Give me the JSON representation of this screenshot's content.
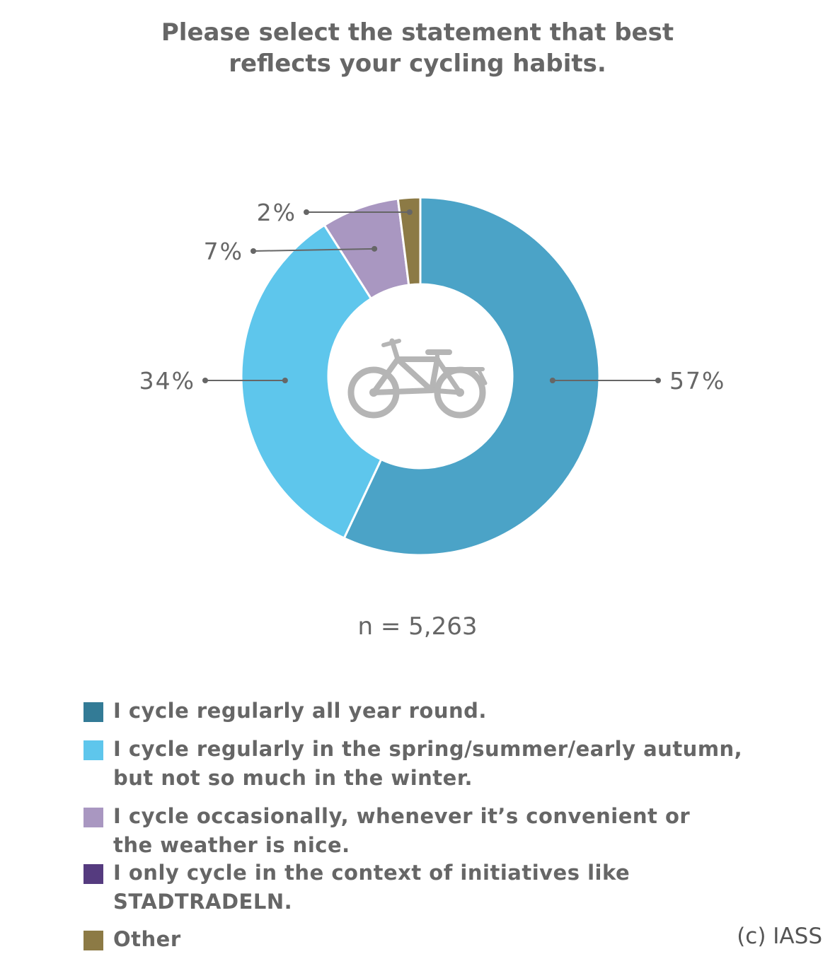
{
  "title_lines": [
    "Please select the statement that best",
    "reflects your cycling habits."
  ],
  "sample_size": "n = 5,263",
  "credit": "(c) IASS",
  "chart_data": {
    "type": "pie",
    "variant": "donut",
    "center_icon": "bicycle-icon",
    "slices": [
      {
        "label": "I cycle regularly all year round.",
        "value": 57,
        "display": "57%",
        "color": "#4ba3c7"
      },
      {
        "label": "I cycle regularly in the spring/summer/early autumn, but not so much in the winter.",
        "value": 34,
        "display": "34%",
        "color": "#5ec6ec"
      },
      {
        "label": "I cycle occasionally, whenever it’s convenient or the weather is nice.",
        "value": 7,
        "display": "7%",
        "color": "#a997c1"
      },
      {
        "label": "Other",
        "value": 2,
        "display": "2%",
        "color": "#8c7a45"
      }
    ]
  },
  "legend": [
    {
      "lines": [
        "I cycle regularly all year round."
      ],
      "color": "#337b96"
    },
    {
      "lines": [
        "I cycle regularly in the spring/summer/early autumn,",
        "but not so much in the winter."
      ],
      "color": "#5ec6ec"
    },
    {
      "lines": [
        "I cycle occasionally, whenever it’s convenient or",
        "the weather is nice."
      ],
      "color": "#a997c1"
    },
    {
      "lines": [
        "I only cycle in the context of initiatives like",
        "STADTRADELN."
      ],
      "color": "#553b7f"
    },
    {
      "lines": [
        "Other"
      ],
      "color": "#8c7a45"
    }
  ]
}
